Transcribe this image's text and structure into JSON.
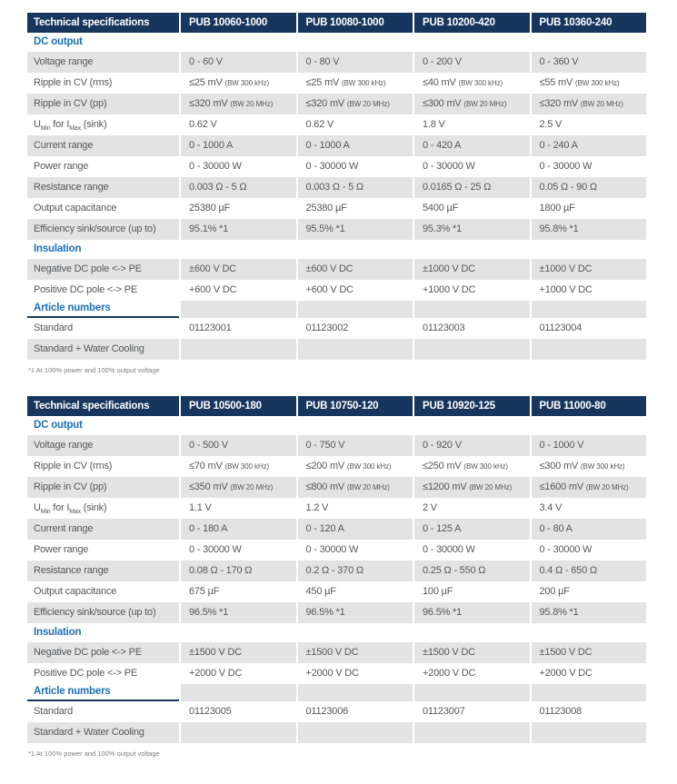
{
  "colors": {
    "navy": "#17365D",
    "blue": "#1C70B7",
    "gray": "#E3E3E4",
    "text": "#54585A",
    "footnote": "#7B7E80"
  },
  "tables": [
    {
      "columns": [
        "Technical specifications",
        "PUB 10060-1000",
        "PUB 10080-1000",
        "PUB 10200-420",
        "PUB 10360-240"
      ],
      "sections": [
        {
          "title": "DC output",
          "rows": [
            {
              "label": "Voltage range",
              "values": [
                "0 - 60 V",
                "0 - 80 V",
                "0 - 200 V",
                "0 - 360 V"
              ]
            },
            {
              "label": "Ripple in CV (rms)",
              "values": [
                "≤25 mV (BW 300 kHz)",
                "≤25 mV (BW 300 kHz)",
                "≤40 mV (BW 300 kHz)",
                "≤55 mV (BW 300 kHz)"
              ]
            },
            {
              "label": "Ripple in CV (pp)",
              "values": [
                "≤320 mV (BW 20 MHz)",
                "≤320 mV (BW 20 MHz)",
                "≤300 mV (BW 20 MHz)",
                "≤320 mV (BW 20 MHz)"
              ]
            },
            {
              "label": "U_{Min} for I_{Max} (sink)",
              "values": [
                "0.62 V",
                "0.62 V",
                "1.8 V",
                "2.5 V"
              ]
            },
            {
              "label": "Current range",
              "values": [
                "0 - 1000 A",
                "0 - 1000 A",
                "0 - 420 A",
                "0 - 240 A"
              ]
            },
            {
              "label": "Power range",
              "values": [
                "0 - 30000 W",
                "0 - 30000 W",
                "0 - 30000 W",
                "0 - 30000 W"
              ]
            },
            {
              "label": "Resistance range",
              "values": [
                "0.003 Ω - 5 Ω",
                "0.003 Ω - 5 Ω",
                "0.0165 Ω - 25 Ω",
                "0.05 Ω - 90 Ω"
              ]
            },
            {
              "label": "Output capacitance",
              "values": [
                "25380 µF",
                "25380 µF",
                "5400 µF",
                "1800 µF"
              ]
            },
            {
              "label": "Efficiency sink/source (up to)",
              "values": [
                "95.1% *1",
                "95.5% *1",
                "95.3% *1",
                "95.8% *1"
              ]
            }
          ]
        },
        {
          "title": "Insulation",
          "rows": [
            {
              "label": "Negative DC pole <-> PE",
              "values": [
                "±600 V DC",
                "±600 V DC",
                "±1000 V DC",
                "±1000 V DC"
              ]
            },
            {
              "label": "Positive DC pole <-> PE",
              "values": [
                "+600 V DC",
                "+600 V DC",
                "+1000 V DC",
                "+1000 V DC"
              ]
            }
          ]
        },
        {
          "title": "Article numbers",
          "rows": [
            {
              "label": "Standard",
              "values": [
                "01123001",
                "01123002",
                "01123003",
                "01123004"
              ]
            },
            {
              "label": "Standard + Water Cooling",
              "values": [
                "",
                "",
                "",
                ""
              ]
            }
          ]
        }
      ],
      "footnote": "*1 At 100% power and 100% output voltage"
    },
    {
      "columns": [
        "Technical specifications",
        "PUB 10500-180",
        "PUB 10750-120",
        "PUB 10920-125",
        "PUB 11000-80"
      ],
      "sections": [
        {
          "title": "DC output",
          "rows": [
            {
              "label": "Voltage range",
              "values": [
                "0 - 500 V",
                "0 - 750 V",
                "0 - 920 V",
                "0 - 1000 V"
              ]
            },
            {
              "label": "Ripple in CV (rms)",
              "values": [
                "≤70 mV (BW 300 kHz)",
                "≤200 mV (BW 300 kHz)",
                "≤250 mV (BW 300 kHz)",
                "≤300 mV (BW 300 kHz)"
              ]
            },
            {
              "label": "Ripple in CV (pp)",
              "values": [
                "≤350 mV (BW 20 MHz)",
                "≤800 mV (BW 20 MHz)",
                "≤1200 mV (BW 20 MHz)",
                "≤1600 mV (BW 20 MHz)"
              ]
            },
            {
              "label": "U_{Min} for I_{Max} (sink)",
              "values": [
                "1.1 V",
                "1.2 V",
                "2 V",
                "3.4 V"
              ]
            },
            {
              "label": "Current range",
              "values": [
                "0 - 180 A",
                "0 - 120 A",
                "0 - 125 A",
                "0 - 80 A"
              ]
            },
            {
              "label": "Power range",
              "values": [
                "0 - 30000 W",
                "0 - 30000 W",
                "0 - 30000 W",
                "0 - 30000 W"
              ]
            },
            {
              "label": "Resistance range",
              "values": [
                "0.08 Ω - 170 Ω",
                "0.2 Ω - 370 Ω",
                "0.25 Ω - 550 Ω",
                "0.4 Ω - 650 Ω"
              ]
            },
            {
              "label": "Output capacitance",
              "values": [
                "675 µF",
                "450 µF",
                "100 µF",
                "200 µF"
              ]
            },
            {
              "label": "Efficiency sink/source (up to)",
              "values": [
                "96.5% *1",
                "96.5% *1",
                "96.5% *1",
                "95.8% *1"
              ]
            }
          ]
        },
        {
          "title": "Insulation",
          "rows": [
            {
              "label": "Negative DC pole <-> PE",
              "values": [
                "±1500 V DC",
                "±1500 V DC",
                "±1500 V DC",
                "±1500 V DC"
              ]
            },
            {
              "label": "Positive DC pole <-> PE",
              "values": [
                "+2000 V DC",
                "+2000 V DC",
                "+2000 V DC",
                "+2000 V DC"
              ]
            }
          ]
        },
        {
          "title": "Article numbers",
          "rows": [
            {
              "label": "Standard",
              "values": [
                "01123005",
                "01123006",
                "01123007",
                "01123008"
              ]
            },
            {
              "label": "Standard + Water Cooling",
              "values": [
                "",
                "",
                "",
                ""
              ]
            }
          ]
        }
      ],
      "footnote": "*1 At 100% power and 100% output voltage"
    }
  ]
}
